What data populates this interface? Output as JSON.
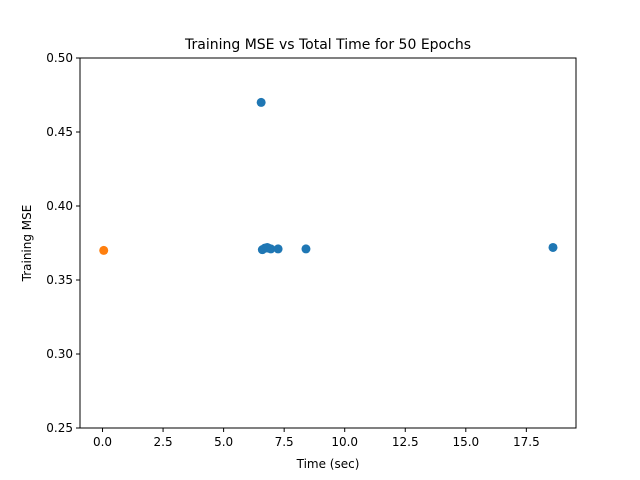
{
  "chart_data": {
    "type": "scatter",
    "title": "Training MSE vs Total Time for 50 Epochs",
    "xlabel": "Time (sec)",
    "ylabel": "Training MSE",
    "xlim": [
      -0.93,
      19.55
    ],
    "ylim": [
      0.25,
      0.5
    ],
    "x_ticks": [
      0.0,
      2.5,
      5.0,
      7.5,
      10.0,
      12.5,
      15.0,
      17.5
    ],
    "x_tick_labels": [
      "0.0",
      "2.5",
      "5.0",
      "7.5",
      "10.0",
      "12.5",
      "15.0",
      "17.5"
    ],
    "y_ticks": [
      0.25,
      0.3,
      0.35,
      0.4,
      0.45,
      0.5
    ],
    "y_tick_labels": [
      "0.25",
      "0.30",
      "0.35",
      "0.40",
      "0.45",
      "0.50"
    ],
    "grid": false,
    "series": [
      {
        "color": "#1f77b4",
        "points": [
          {
            "x": 6.55,
            "y": 0.47
          },
          {
            "x": 6.6,
            "y": 0.3705
          },
          {
            "x": 6.7,
            "y": 0.3715
          },
          {
            "x": 6.8,
            "y": 0.372
          },
          {
            "x": 6.85,
            "y": 0.3715
          },
          {
            "x": 6.95,
            "y": 0.371
          },
          {
            "x": 7.25,
            "y": 0.371
          },
          {
            "x": 8.4,
            "y": 0.371
          },
          {
            "x": 18.6,
            "y": 0.372
          }
        ]
      },
      {
        "color": "#ff7f0e",
        "points": [
          {
            "x": 0.05,
            "y": 0.37
          }
        ]
      }
    ]
  }
}
